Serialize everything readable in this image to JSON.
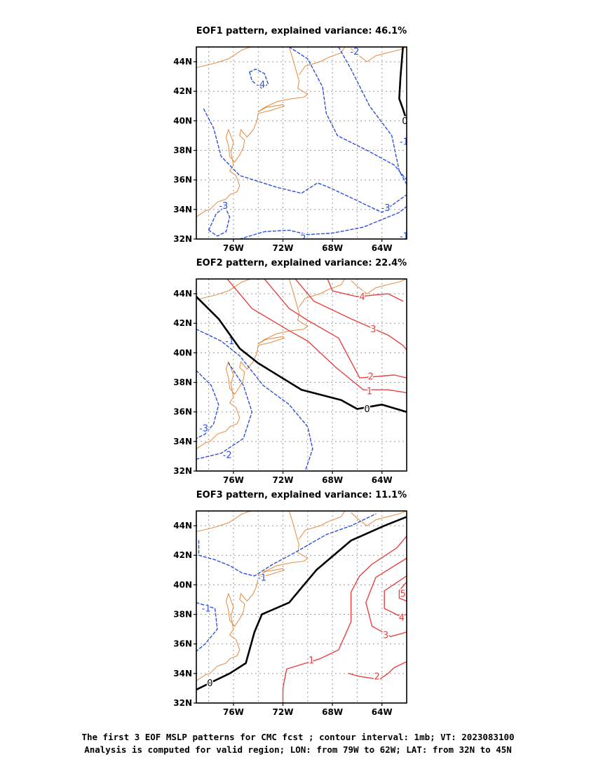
{
  "figure": {
    "caption_line1": "The first 3 EOF MSLP patterns for CMC fcst ; contour interval: 1mb; VT: 2023083100",
    "caption_line2": "Analysis is computed for valid region; LON: from 79W to 62W; LAT: from 32N to 45N"
  },
  "colors": {
    "coast": "#e8883a",
    "negative": "#2d4fe0",
    "positive": "#e84040",
    "zero": "#000000",
    "grid": "#999999"
  },
  "chart_data": [
    {
      "type": "contour",
      "title": "EOF1 pattern, explained variance: 46.1%",
      "xlim": [
        -79,
        -62
      ],
      "ylim": [
        32,
        45
      ],
      "xticks": [
        "76W",
        "72W",
        "68W",
        "64W"
      ],
      "yticks": [
        "32N",
        "34N",
        "36N",
        "38N",
        "40N",
        "42N",
        "44N"
      ],
      "contours": [
        {
          "level": -4,
          "label": "-4",
          "lines": [
            [
              [
                -74.7,
                43.3
              ],
              [
                -74.2,
                43.5
              ],
              [
                -73.5,
                43.2
              ],
              [
                -73.2,
                42.5
              ],
              [
                -73.7,
                42.2
              ],
              [
                -74.5,
                42.7
              ],
              [
                -74.7,
                43.3
              ]
            ]
          ],
          "labels_at": [
            [
              -73.8,
              42.45
            ]
          ]
        },
        {
          "level": -3,
          "label": "-3",
          "lines": [
            [
              [
                -78.4,
                40.8
              ],
              [
                -77.6,
                39.5
              ],
              [
                -77.0,
                37.6
              ],
              [
                -75.5,
                36.3
              ],
              [
                -72.5,
                35.5
              ],
              [
                -70.5,
                35.1
              ],
              [
                -69.2,
                35.8
              ],
              [
                -68.3,
                35.5
              ],
              [
                -66.5,
                34.8
              ],
              [
                -64.0,
                33.8
              ],
              [
                -62.0,
                35.0
              ]
            ],
            [
              [
                -78.0,
                32.6
              ],
              [
                -77.4,
                33.7
              ],
              [
                -76.7,
                34.2
              ],
              [
                -76.3,
                33.5
              ],
              [
                -76.6,
                32.5
              ],
              [
                -77.3,
                32.2
              ],
              [
                -78.0,
                32.6
              ]
            ]
          ],
          "labels_at": [
            [
              -76.8,
              34.25
            ],
            [
              -63.7,
              34.1
            ]
          ]
        },
        {
          "level": -2,
          "label": "-2",
          "lines": [
            [
              [
                -71.5,
                45.0
              ],
              [
                -70.0,
                44.2
              ],
              [
                -68.8,
                42.3
              ],
              [
                -68.5,
                40.5
              ],
              [
                -67.6,
                39.0
              ],
              [
                -65.2,
                38.0
              ],
              [
                -63.0,
                37.0
              ],
              [
                -62.0,
                36.0
              ]
            ],
            [
              [
                -75.5,
                32.0
              ],
              [
                -73.5,
                32.5
              ],
              [
                -71.5,
                32.6
              ],
              [
                -70.0,
                32.3
              ],
              [
                -68.0,
                32.4
              ],
              [
                -65.5,
                32.8
              ],
              [
                -62.6,
                33.8
              ],
              [
                -62.0,
                34.2
              ]
            ]
          ],
          "labels_at": [
            [
              -70.5,
              32.05
            ],
            [
              -66.2,
              44.7
            ]
          ]
        },
        {
          "level": -1,
          "label": "-1",
          "lines": [
            [
              [
                -67.5,
                45.0
              ],
              [
                -66.5,
                43.5
              ],
              [
                -65.0,
                41.0
              ],
              [
                -63.2,
                39.0
              ],
              [
                -62.6,
                36.6
              ],
              [
                -62.0,
                35.7
              ]
            ]
          ],
          "labels_at": [
            [
              -62.2,
              38.6
            ],
            [
              -62.2,
              32.2
            ]
          ]
        },
        {
          "level": 0,
          "label": "0",
          "lines": [
            [
              [
                -62.3,
                45.0
              ],
              [
                -62.5,
                43.0
              ],
              [
                -62.6,
                41.5
              ],
              [
                -62.3,
                40.8
              ],
              [
                -62.0,
                40.0
              ]
            ]
          ],
          "labels_at": [
            [
              -62.15,
              40.0
            ]
          ]
        }
      ]
    },
    {
      "type": "contour",
      "title": "EOF2 pattern, explained variance: 22.4%",
      "xlim": [
        -79,
        -62
      ],
      "ylim": [
        32,
        45
      ],
      "xticks": [
        "76W",
        "72W",
        "68W",
        "64W"
      ],
      "yticks": [
        "32N",
        "34N",
        "36N",
        "38N",
        "40N",
        "42N",
        "44N"
      ],
      "contours": [
        {
          "level": -3,
          "label": "-3",
          "lines": [
            [
              [
                -79.0,
                38.8
              ],
              [
                -77.8,
                37.8
              ],
              [
                -77.2,
                36.5
              ],
              [
                -77.6,
                35.2
              ],
              [
                -78.3,
                34.5
              ],
              [
                -79.0,
                34.2
              ]
            ]
          ],
          "labels_at": [
            [
              -78.4,
              34.9
            ]
          ]
        },
        {
          "level": -2,
          "label": "-2",
          "lines": [
            [
              [
                -79.0,
                32.8
              ],
              [
                -77.0,
                33.2
              ],
              [
                -75.2,
                34.2
              ],
              [
                -74.5,
                36.0
              ],
              [
                -75.2,
                37.8
              ],
              [
                -76.4,
                39.3
              ]
            ]
          ],
          "labels_at": [
            [
              -76.5,
              33.1
            ]
          ]
        },
        {
          "level": -1,
          "label": "-1",
          "lines": [
            [
              [
                -79.0,
                41.6
              ],
              [
                -77.0,
                40.8
              ],
              [
                -75.5,
                39.8
              ],
              [
                -73.6,
                37.8
              ],
              [
                -71.5,
                36.5
              ],
              [
                -70.0,
                35.0
              ],
              [
                -69.6,
                33.5
              ],
              [
                -70.2,
                32.0
              ]
            ]
          ],
          "labels_at": [
            [
              -76.3,
              40.8
            ]
          ]
        },
        {
          "level": 0,
          "label": "0",
          "lines": [
            [
              [
                -79.0,
                43.8
              ],
              [
                -77.2,
                42.3
              ],
              [
                -75.5,
                40.3
              ],
              [
                -74.0,
                39.3
              ],
              [
                -70.5,
                37.5
              ],
              [
                -67.3,
                36.8
              ],
              [
                -66.0,
                36.2
              ],
              [
                -64.0,
                36.5
              ],
              [
                -62.0,
                36.0
              ]
            ]
          ],
          "labels_at": [
            [
              -65.2,
              36.2
            ]
          ]
        },
        {
          "level": 1,
          "label": "1",
          "lines": [
            [
              [
                -76.5,
                45.0
              ],
              [
                -74.5,
                43.0
              ],
              [
                -71.5,
                41.5
              ],
              [
                -70.0,
                40.8
              ],
              [
                -67.7,
                39.0
              ],
              [
                -65.5,
                37.5
              ],
              [
                -63.5,
                37.5
              ],
              [
                -62.0,
                37.3
              ]
            ]
          ],
          "labels_at": [
            [
              -65.0,
              37.4
            ]
          ]
        },
        {
          "level": 2,
          "label": "2",
          "lines": [
            [
              [
                -73.5,
                45.0
              ],
              [
                -71.5,
                43.0
              ],
              [
                -70.0,
                42.2
              ],
              [
                -67.5,
                41.0
              ],
              [
                -65.8,
                38.3
              ],
              [
                -63.0,
                38.5
              ],
              [
                -62.0,
                38.3
              ]
            ]
          ],
          "labels_at": [
            [
              -64.9,
              38.4
            ]
          ]
        },
        {
          "level": 3,
          "label": "3",
          "lines": [
            [
              [
                -71.0,
                45.0
              ],
              [
                -69.5,
                43.5
              ],
              [
                -66.5,
                42.3
              ],
              [
                -63.5,
                41.2
              ],
              [
                -62.3,
                40.5
              ],
              [
                -62.0,
                40.2
              ]
            ]
          ],
          "labels_at": [
            [
              -64.7,
              41.6
            ]
          ]
        },
        {
          "level": 4,
          "label": "4",
          "lines": [
            [
              [
                -68.4,
                45.0
              ],
              [
                -68.0,
                44.2
              ],
              [
                -66.0,
                43.8
              ],
              [
                -63.5,
                44.0
              ],
              [
                -62.3,
                43.5
              ]
            ]
          ],
          "labels_at": [
            [
              -65.6,
              43.8
            ]
          ]
        }
      ]
    },
    {
      "type": "contour",
      "title": "EOF3 pattern, explained variance: 11.1%",
      "xlim": [
        -79,
        -62
      ],
      "ylim": [
        32,
        45
      ],
      "xticks": [
        "76W",
        "72W",
        "68W",
        "64W"
      ],
      "yticks": [
        "32N",
        "34N",
        "36N",
        "38N",
        "40N",
        "42N",
        "44N"
      ],
      "contours": [
        {
          "level": -1,
          "label": "-1",
          "lines": [
            [
              [
                -78.8,
                43.0
              ],
              [
                -78.8,
                42.0
              ],
              [
                -77.5,
                41.7
              ],
              [
                -76.3,
                41.3
              ],
              [
                -75.3,
                40.8
              ],
              [
                -74.3,
                40.6
              ],
              [
                -72.8,
                41.4
              ],
              [
                -71.0,
                42.2
              ],
              [
                -68.5,
                43.4
              ],
              [
                -66.5,
                44.0
              ],
              [
                -64.5,
                44.8
              ]
            ],
            [
              [
                -79.0,
                38.8
              ],
              [
                -77.5,
                38.4
              ],
              [
                -77.3,
                37.0
              ],
              [
                -78.3,
                36.0
              ],
              [
                -79.0,
                35.5
              ]
            ]
          ],
          "labels_at": [
            [
              -73.7,
              40.5
            ],
            [
              -78.2,
              38.4
            ]
          ]
        },
        {
          "level": 0,
          "label": "0",
          "lines": [
            [
              [
                -79.0,
                32.9
              ],
              [
                -77.8,
                33.4
              ],
              [
                -76.3,
                34.0
              ],
              [
                -75.0,
                34.7
              ],
              [
                -74.3,
                36.8
              ],
              [
                -73.7,
                38.0
              ],
              [
                -71.5,
                38.8
              ],
              [
                -70.5,
                39.8
              ],
              [
                -69.3,
                41.0
              ],
              [
                -66.5,
                43.0
              ],
              [
                -63.8,
                44.0
              ],
              [
                -62.0,
                44.6
              ]
            ]
          ],
          "labels_at": [
            [
              -77.9,
              33.35
            ]
          ]
        },
        {
          "level": 1,
          "label": "1",
          "lines": [
            [
              [
                -72.0,
                32.0
              ],
              [
                -72.0,
                33.0
              ],
              [
                -71.7,
                34.3
              ],
              [
                -69.0,
                35.0
              ],
              [
                -67.5,
                35.6
              ],
              [
                -66.5,
                37.5
              ],
              [
                -66.5,
                39.5
              ],
              [
                -65.8,
                40.6
              ],
              [
                -64.8,
                41.4
              ],
              [
                -62.8,
                42.5
              ],
              [
                -62.0,
                43.3
              ]
            ]
          ],
          "labels_at": [
            [
              -69.7,
              34.9
            ]
          ]
        },
        {
          "level": 2,
          "label": "2",
          "lines": [
            [
              [
                -66.7,
                34.0
              ],
              [
                -65.8,
                33.8
              ],
              [
                -64.2,
                33.6
              ],
              [
                -63.5,
                34.0
              ],
              [
                -63.0,
                34.4
              ],
              [
                -62.0,
                34.8
              ]
            ]
          ],
          "labels_at": [
            [
              -64.4,
              33.8
            ]
          ]
        },
        {
          "level": 3,
          "label": "3",
          "lines": [
            [
              [
                -62.0,
                41.8
              ],
              [
                -64.5,
                40.5
              ],
              [
                -65.3,
                38.8
              ],
              [
                -64.8,
                37.2
              ],
              [
                -63.3,
                36.5
              ],
              [
                -62.0,
                36.8
              ]
            ]
          ],
          "labels_at": [
            [
              -63.7,
              36.6
            ]
          ]
        },
        {
          "level": 4,
          "label": "4",
          "lines": [
            [
              [
                -62.0,
                40.6
              ],
              [
                -63.8,
                39.6
              ],
              [
                -63.8,
                38.4
              ],
              [
                -62.6,
                37.9
              ],
              [
                -62.0,
                38.0
              ]
            ]
          ],
          "labels_at": [
            [
              -62.4,
              37.8
            ]
          ]
        },
        {
          "level": 5,
          "label": "5",
          "lines": [
            [
              [
                -62.0,
                40.2
              ],
              [
                -62.6,
                39.6
              ],
              [
                -62.6,
                39.1
              ],
              [
                -62.0,
                38.9
              ]
            ]
          ],
          "labels_at": [
            [
              -62.3,
              39.4
            ]
          ]
        }
      ]
    }
  ]
}
